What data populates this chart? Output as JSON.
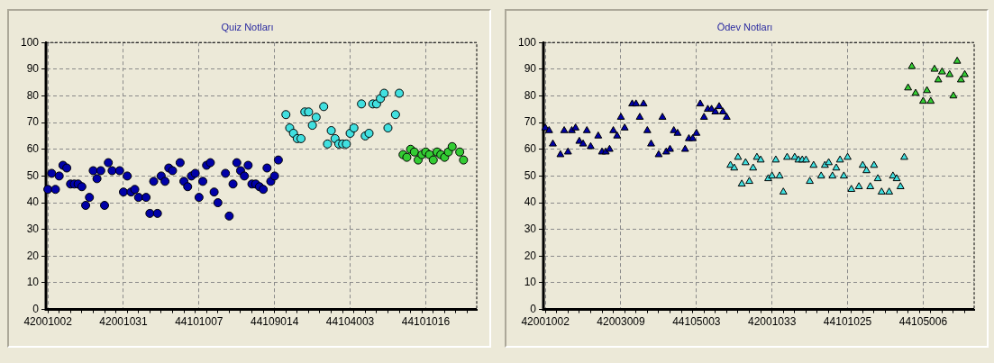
{
  "chart_data": [
    {
      "type": "scatter",
      "title": "Quiz Notları",
      "marker": "circle",
      "grid": true,
      "ylim": [
        0,
        100
      ],
      "yticks": [
        0,
        10,
        20,
        30,
        40,
        50,
        60,
        70,
        80,
        90,
        100
      ],
      "categories": [
        "42001002",
        null,
        null,
        null,
        null,
        null,
        null,
        null,
        null,
        null,
        null,
        null,
        null,
        null,
        null,
        null,
        null,
        null,
        null,
        null,
        "42001031",
        null,
        null,
        null,
        null,
        null,
        null,
        null,
        null,
        null,
        null,
        null,
        null,
        null,
        null,
        null,
        null,
        null,
        null,
        null,
        "44101007",
        null,
        null,
        null,
        null,
        null,
        null,
        null,
        null,
        null,
        null,
        null,
        null,
        null,
        null,
        null,
        null,
        null,
        null,
        null,
        "44109014",
        null,
        null,
        null,
        null,
        null,
        null,
        null,
        null,
        null,
        null,
        null,
        null,
        null,
        null,
        null,
        null,
        null,
        null,
        null,
        "44104003",
        null,
        null,
        null,
        null,
        null,
        null,
        null,
        null,
        null,
        null,
        null,
        null,
        null,
        null,
        null,
        null,
        null,
        null,
        null,
        "44101016",
        null,
        null,
        null,
        null,
        null,
        null,
        null,
        null,
        null,
        null,
        null,
        null,
        null
      ],
      "series": [
        {
          "color": "#0000a8",
          "values": [
            45,
            51,
            45,
            50,
            54,
            53,
            47,
            47,
            47,
            46,
            39,
            42,
            52,
            49,
            52,
            39,
            55,
            52,
            null,
            52,
            44,
            50,
            44,
            45,
            42,
            null,
            42,
            36,
            48,
            36,
            50,
            48,
            53,
            52,
            null,
            55,
            48,
            46,
            50,
            51,
            42,
            48,
            54,
            55,
            44,
            40,
            null,
            51,
            35,
            47,
            55,
            52,
            50,
            54,
            47,
            47,
            46,
            45,
            53,
            48,
            50,
            56,
            null,
            null,
            null,
            null,
            null,
            null,
            null,
            null,
            null,
            null,
            null,
            null,
            null,
            null,
            null,
            null,
            null,
            null,
            null,
            null,
            null,
            null,
            null,
            null,
            null,
            null,
            null,
            null,
            null,
            null,
            null,
            null,
            null,
            null,
            null,
            null,
            null,
            null,
            null,
            null,
            null,
            null,
            null,
            null,
            null,
            null,
            null,
            null,
            null,
            null,
            null,
            null
          ]
        },
        {
          "color": "#40e0e0",
          "values": [
            null,
            null,
            null,
            null,
            null,
            null,
            null,
            null,
            null,
            null,
            null,
            null,
            null,
            null,
            null,
            null,
            null,
            null,
            null,
            null,
            null,
            null,
            null,
            null,
            null,
            null,
            null,
            null,
            null,
            null,
            null,
            null,
            null,
            null,
            null,
            null,
            null,
            null,
            null,
            null,
            null,
            null,
            null,
            null,
            null,
            null,
            null,
            null,
            null,
            null,
            null,
            null,
            null,
            null,
            null,
            null,
            null,
            null,
            null,
            null,
            null,
            null,
            null,
            73,
            68,
            66,
            64,
            64,
            74,
            74,
            69,
            72,
            null,
            76,
            62,
            67,
            64,
            62,
            62,
            62,
            66,
            68,
            null,
            77,
            65,
            66,
            77,
            77,
            79,
            81,
            68,
            null,
            73,
            81,
            null,
            null,
            null,
            null,
            null,
            null,
            null,
            null,
            null,
            null,
            null,
            null,
            null,
            null,
            null,
            null,
            null,
            null,
            null,
            null
          ]
        },
        {
          "color": "#33cc33",
          "values": [
            null,
            null,
            null,
            null,
            null,
            null,
            null,
            null,
            null,
            null,
            null,
            null,
            null,
            null,
            null,
            null,
            null,
            null,
            null,
            null,
            null,
            null,
            null,
            null,
            null,
            null,
            null,
            null,
            null,
            null,
            null,
            null,
            null,
            null,
            null,
            null,
            null,
            null,
            null,
            null,
            null,
            null,
            null,
            null,
            null,
            null,
            null,
            null,
            null,
            null,
            null,
            null,
            null,
            null,
            null,
            null,
            null,
            null,
            null,
            null,
            null,
            null,
            null,
            null,
            null,
            null,
            null,
            null,
            null,
            null,
            null,
            null,
            null,
            null,
            null,
            null,
            null,
            null,
            null,
            null,
            null,
            null,
            null,
            null,
            null,
            null,
            null,
            null,
            null,
            null,
            null,
            null,
            null,
            null,
            58,
            57,
            60,
            59,
            56,
            58,
            59,
            58,
            56,
            59,
            58,
            57,
            59,
            61,
            null,
            59,
            56,
            null,
            null,
            null
          ]
        }
      ]
    },
    {
      "type": "scatter",
      "title": "Ödev Notları",
      "marker": "triangle",
      "grid": true,
      "ylim": [
        0,
        100
      ],
      "yticks": [
        0,
        10,
        20,
        30,
        40,
        50,
        60,
        70,
        80,
        90,
        100
      ],
      "categories": [
        "42001002",
        null,
        null,
        null,
        null,
        null,
        null,
        null,
        null,
        null,
        null,
        null,
        null,
        null,
        null,
        null,
        null,
        null,
        null,
        null,
        "42003009",
        null,
        null,
        null,
        null,
        null,
        null,
        null,
        null,
        null,
        null,
        null,
        null,
        null,
        null,
        null,
        null,
        null,
        null,
        null,
        "44105003",
        null,
        null,
        null,
        null,
        null,
        null,
        null,
        null,
        null,
        null,
        null,
        null,
        null,
        null,
        null,
        null,
        null,
        null,
        null,
        "42001033",
        null,
        null,
        null,
        null,
        null,
        null,
        null,
        null,
        null,
        null,
        null,
        null,
        null,
        null,
        null,
        null,
        null,
        null,
        null,
        "44101025",
        null,
        null,
        null,
        null,
        null,
        null,
        null,
        null,
        null,
        null,
        null,
        null,
        null,
        null,
        null,
        null,
        null,
        null,
        null,
        "44105006",
        null,
        null,
        null,
        null,
        null,
        null,
        null,
        null,
        null,
        null,
        null,
        null,
        null
      ],
      "series": [
        {
          "color": "#0000a8",
          "values": [
            68,
            67,
            62,
            null,
            58,
            67,
            59,
            67,
            68,
            63,
            62,
            67,
            61,
            null,
            65,
            59,
            59,
            60,
            67,
            65,
            72,
            68,
            null,
            77,
            77,
            72,
            77,
            67,
            62,
            null,
            58,
            72,
            59,
            60,
            67,
            66,
            null,
            60,
            64,
            64,
            66,
            77,
            72,
            75,
            75,
            74,
            76,
            74,
            72,
            null,
            null,
            null,
            null,
            null,
            null,
            null,
            null,
            null,
            null,
            null,
            null,
            null,
            null,
            null,
            null,
            null,
            null,
            null,
            null,
            null,
            null,
            null,
            null,
            null,
            null,
            null,
            null,
            null,
            null,
            null,
            null,
            null,
            null,
            null,
            null,
            null,
            null,
            null,
            null,
            null,
            null,
            null,
            null,
            null,
            null,
            null,
            null,
            null,
            null,
            null,
            null,
            null,
            null,
            null,
            null,
            null,
            null,
            null,
            null,
            null,
            null,
            null,
            null,
            null
          ]
        },
        {
          "color": "#40e0e0",
          "values": [
            null,
            null,
            null,
            null,
            null,
            null,
            null,
            null,
            null,
            null,
            null,
            null,
            null,
            null,
            null,
            null,
            null,
            null,
            null,
            null,
            null,
            null,
            null,
            null,
            null,
            null,
            null,
            null,
            null,
            null,
            null,
            null,
            null,
            null,
            null,
            null,
            null,
            null,
            null,
            null,
            null,
            null,
            null,
            null,
            null,
            null,
            null,
            null,
            null,
            54,
            53,
            57,
            47,
            55,
            48,
            53,
            57,
            56,
            null,
            49,
            50,
            56,
            50,
            44,
            57,
            null,
            57,
            56,
            56,
            56,
            48,
            54,
            null,
            50,
            54,
            55,
            50,
            53,
            56,
            50,
            57,
            45,
            null,
            46,
            54,
            52,
            46,
            54,
            49,
            44,
            null,
            44,
            50,
            49,
            46,
            57,
            null,
            null,
            null,
            null,
            null,
            null,
            null,
            null,
            null,
            null,
            null,
            null,
            null,
            null,
            null,
            null,
            null,
            null
          ]
        },
        {
          "color": "#33cc33",
          "values": [
            null,
            null,
            null,
            null,
            null,
            null,
            null,
            null,
            null,
            null,
            null,
            null,
            null,
            null,
            null,
            null,
            null,
            null,
            null,
            null,
            null,
            null,
            null,
            null,
            null,
            null,
            null,
            null,
            null,
            null,
            null,
            null,
            null,
            null,
            null,
            null,
            null,
            null,
            null,
            null,
            null,
            null,
            null,
            null,
            null,
            null,
            null,
            null,
            null,
            null,
            null,
            null,
            null,
            null,
            null,
            null,
            null,
            null,
            null,
            null,
            null,
            null,
            null,
            null,
            null,
            null,
            null,
            null,
            null,
            null,
            null,
            null,
            null,
            null,
            null,
            null,
            null,
            null,
            null,
            null,
            null,
            null,
            null,
            null,
            null,
            null,
            null,
            null,
            null,
            null,
            null,
            null,
            null,
            null,
            null,
            null,
            83,
            91,
            81,
            null,
            78,
            82,
            78,
            90,
            86,
            89,
            null,
            88,
            80,
            93,
            86,
            88,
            null,
            null
          ]
        }
      ]
    }
  ]
}
